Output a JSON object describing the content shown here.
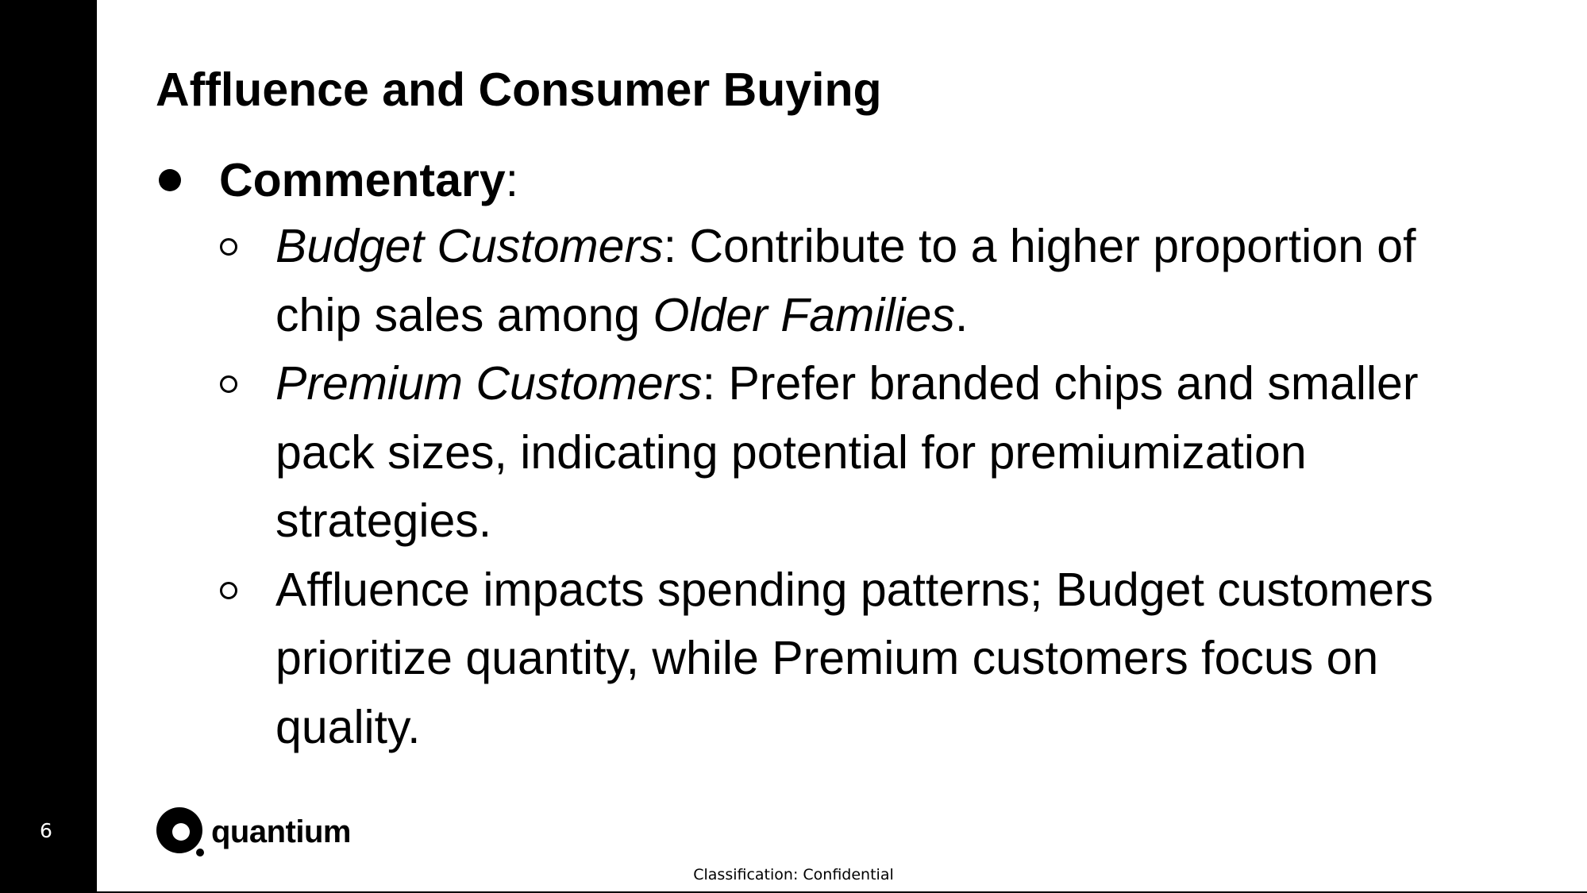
{
  "slide": {
    "page_number": "6",
    "title": "Affluence and Consumer Buying",
    "commentary": {
      "label": "Commentary",
      "suffix": ":"
    },
    "points": [
      {
        "term": "Budget Customers",
        "line1": ": Contribute to a higher proportion of",
        "line2_prefix": "chip sales among ",
        "line2_italic": "Older Families",
        "line2_suffix": "."
      },
      {
        "term": "Premium Customers",
        "line1": ": Prefer branded chips and smaller",
        "line2": "pack sizes, indicating potential for premiumization",
        "line3": "strategies."
      },
      {
        "line1": "Affluence impacts spending patterns; Budget customers",
        "line2": "prioritize quantity, while Premium customers focus on",
        "line3": "quality."
      }
    ],
    "logo_text": "quantium",
    "classification": "Classification: Confidential"
  },
  "colors": {
    "sidebar": "#000000",
    "background": "#ffffff",
    "text": "#000000"
  }
}
